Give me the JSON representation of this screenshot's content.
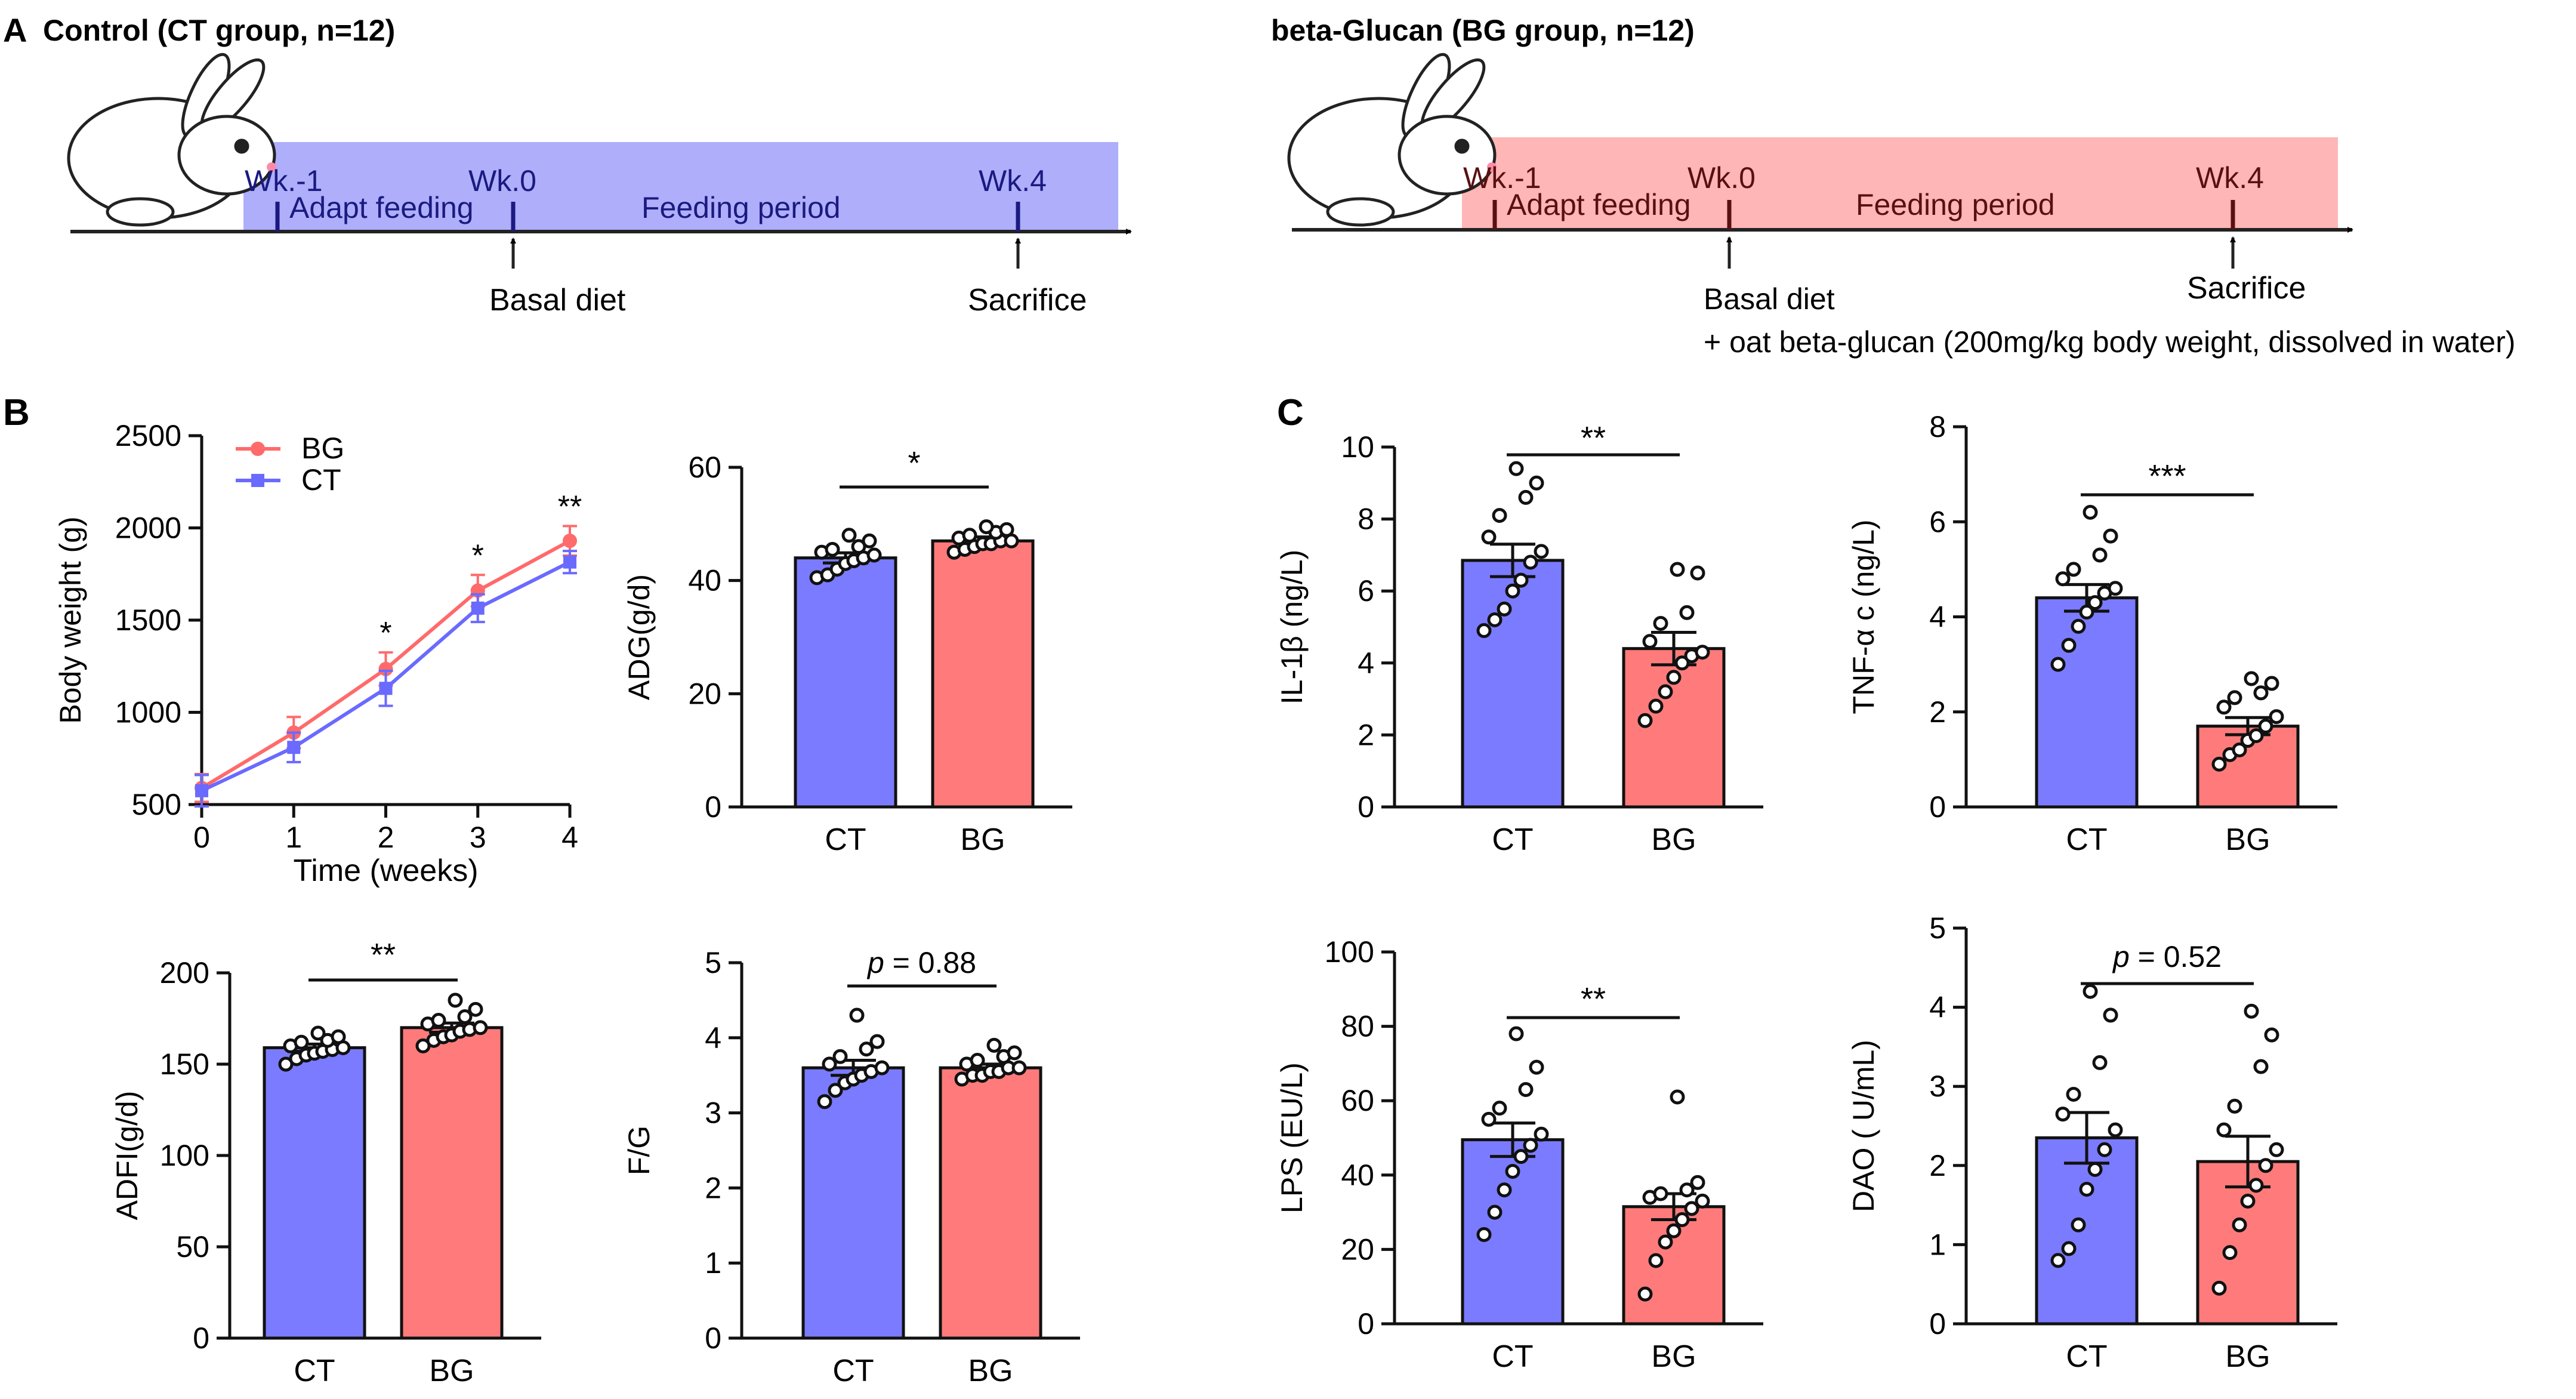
{
  "panels": {
    "a": "A",
    "b": "B",
    "c": "C"
  },
  "colors": {
    "ct_fill": "#7b7bff",
    "bg_fill": "#ff7b7b",
    "ct_band": "#aeaefb",
    "bg_band": "#ffb6b6",
    "ct_line": "#6a6aff",
    "bg_line": "#ff6a6a"
  },
  "schedule": {
    "ct": {
      "title": "Control (CT group, n=12)",
      "wk_m1": "Wk.-1",
      "wk0": "Wk.0",
      "wk4": "Wk.4",
      "adapt": "Adapt feeding",
      "feeding": "Feeding period",
      "diet": "Basal diet",
      "sacrifice": "Sacrifice"
    },
    "bg": {
      "title": "beta-Glucan (BG group, n=12)",
      "wk_m1": "Wk.-1",
      "wk0": "Wk.0",
      "wk4": "Wk.4",
      "adapt": "Adapt feeding",
      "feeding": "Feeding period",
      "diet": "Basal diet",
      "diet2": "+ oat beta-glucan (200mg/kg body weight, dissolved in water)",
      "sacrifice": "Sacrifice"
    }
  },
  "chart_data": [
    {
      "id": "bw",
      "type": "line",
      "xlabel": "Time (weeks)",
      "ylabel": "Body weight (g)",
      "x": [
        0,
        1,
        2,
        3,
        4
      ],
      "xticks": [
        "0",
        "1",
        "2",
        "3",
        "4"
      ],
      "ylim": [
        500,
        2500
      ],
      "yticks": [
        "500",
        "1000",
        "1500",
        "2000",
        "2500"
      ],
      "series": [
        {
          "name": "BG",
          "values": [
            590,
            890,
            1235,
            1660,
            1930
          ],
          "err": [
            75,
            85,
            90,
            85,
            80
          ]
        },
        {
          "name": "CT",
          "values": [
            575,
            810,
            1130,
            1565,
            1815
          ],
          "err": [
            85,
            80,
            95,
            75,
            60
          ]
        }
      ],
      "annotations": [
        "",
        "",
        "*",
        "*",
        "**"
      ]
    },
    {
      "id": "adg",
      "type": "bar",
      "categories": [
        "CT",
        "BG"
      ],
      "ylabel": "ADG(g/d)",
      "ylim": [
        0,
        60
      ],
      "yticks": [
        "0",
        "20",
        "40",
        "60"
      ],
      "values": [
        44,
        47
      ],
      "err": [
        0.9,
        0.7
      ],
      "points": [
        [
          40.5,
          41,
          42,
          43,
          43.5,
          44,
          44.5,
          45,
          45.5,
          46,
          47,
          48
        ],
        [
          45,
          45.5,
          46,
          46.5,
          46.5,
          47,
          47,
          47.5,
          48,
          48.5,
          49,
          49.5
        ]
      ],
      "sig": "*"
    },
    {
      "id": "adfi",
      "type": "bar",
      "categories": [
        "CT",
        "BG"
      ],
      "ylabel": "ADFI(g/d)",
      "ylim": [
        0,
        200
      ],
      "yticks": [
        "0",
        "50",
        "100",
        "150",
        "200"
      ],
      "values": [
        159,
        170
      ],
      "err": [
        2,
        2.5
      ],
      "points": [
        [
          150,
          153,
          155,
          156,
          157,
          158,
          159,
          160,
          162,
          163,
          165,
          167
        ],
        [
          160,
          163,
          165,
          166,
          168,
          169,
          170,
          172,
          174,
          176,
          180,
          185
        ]
      ],
      "sig": "**"
    },
    {
      "id": "fg",
      "type": "bar",
      "categories": [
        "CT",
        "BG"
      ],
      "ylabel": "F/G",
      "ylim": [
        0,
        5
      ],
      "yticks": [
        "0",
        "1",
        "2",
        "3",
        "4",
        "5"
      ],
      "values": [
        3.6,
        3.6
      ],
      "err": [
        0.1,
        0.05
      ],
      "points": [
        [
          3.15,
          3.3,
          3.4,
          3.45,
          3.5,
          3.55,
          3.6,
          3.65,
          3.75,
          3.85,
          3.95,
          4.3
        ],
        [
          3.45,
          3.5,
          3.5,
          3.55,
          3.55,
          3.6,
          3.6,
          3.65,
          3.7,
          3.75,
          3.8,
          3.9
        ]
      ],
      "sig_prefix": "p",
      "sig": " = 0.88"
    },
    {
      "id": "il1b",
      "type": "bar",
      "categories": [
        "CT",
        "BG"
      ],
      "ylabel": "IL-1β (ng/L)",
      "ylim": [
        0,
        10
      ],
      "yticks": [
        "0",
        "2",
        "4",
        "6",
        "8",
        "10"
      ],
      "values": [
        6.85,
        4.4
      ],
      "err": [
        0.45,
        0.45
      ],
      "points": [
        [
          4.9,
          5.2,
          5.5,
          6.0,
          6.3,
          6.8,
          7.1,
          7.5,
          8.1,
          8.6,
          9.0,
          9.4
        ],
        [
          2.4,
          2.8,
          3.2,
          3.6,
          4.0,
          4.2,
          4.3,
          4.6,
          5.1,
          5.4,
          6.5,
          6.6
        ]
      ],
      "sig": "**"
    },
    {
      "id": "tnfa",
      "type": "bar",
      "categories": [
        "CT",
        "BG"
      ],
      "ylabel": "TNF-α c (ng/L)",
      "ylim": [
        0,
        8
      ],
      "yticks": [
        "0",
        "2",
        "4",
        "6",
        "8"
      ],
      "values": [
        4.4,
        1.7
      ],
      "err": [
        0.28,
        0.18
      ],
      "points": [
        [
          3.0,
          3.4,
          3.8,
          4.1,
          4.3,
          4.5,
          4.6,
          4.8,
          5.0,
          5.3,
          5.7,
          6.2
        ],
        [
          0.9,
          1.1,
          1.2,
          1.4,
          1.5,
          1.7,
          1.9,
          2.1,
          2.3,
          2.4,
          2.6,
          2.7
        ]
      ],
      "sig": "***"
    },
    {
      "id": "lps",
      "type": "bar",
      "categories": [
        "CT",
        "BG"
      ],
      "ylabel": "LPS (EU/L)",
      "ylim": [
        0,
        100
      ],
      "yticks": [
        "0",
        "20",
        "40",
        "60",
        "80",
        "100"
      ],
      "values": [
        49.5,
        31.5
      ],
      "err": [
        4.5,
        3.5
      ],
      "points": [
        [
          24,
          30,
          36,
          41,
          45,
          48,
          51,
          55,
          58,
          63,
          69,
          78
        ],
        [
          8,
          17,
          22,
          25,
          28,
          31,
          33,
          34,
          35,
          36,
          38,
          61
        ]
      ],
      "sig": "**"
    },
    {
      "id": "dao",
      "type": "bar",
      "categories": [
        "CT",
        "BG"
      ],
      "ylabel": "DAO ( U/mL)",
      "ylim": [
        0,
        5
      ],
      "yticks": [
        "0",
        "1",
        "2",
        "3",
        "4",
        "5"
      ],
      "values": [
        2.35,
        2.05
      ],
      "err": [
        0.32,
        0.32
      ],
      "points": [
        [
          0.8,
          0.95,
          1.25,
          1.7,
          1.95,
          2.2,
          2.45,
          2.65,
          2.9,
          3.3,
          3.9,
          4.2
        ],
        [
          0.45,
          0.9,
          1.25,
          1.55,
          1.75,
          2.0,
          2.2,
          2.45,
          2.75,
          3.25,
          3.65,
          3.95
        ]
      ],
      "sig_prefix": "p",
      "sig": " = 0.52"
    }
  ]
}
